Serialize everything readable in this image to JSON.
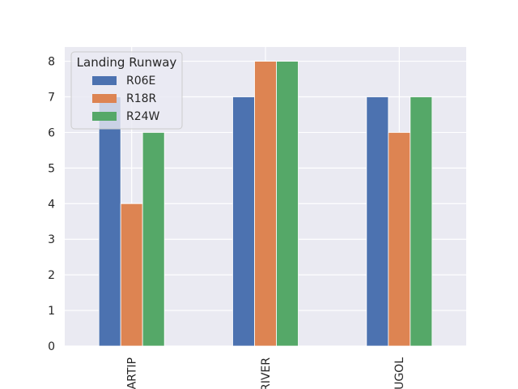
{
  "chart_data": {
    "type": "bar",
    "title": "",
    "xlabel": "",
    "ylabel": "",
    "categories": [
      "ARTIP",
      "RIVER",
      "UGOL"
    ],
    "series": [
      {
        "name": "R06E",
        "values": [
          7,
          7,
          7
        ],
        "color": "#4c72b0"
      },
      {
        "name": "R18R",
        "values": [
          4,
          8,
          6
        ],
        "color": "#dd8452"
      },
      {
        "name": "R24W",
        "values": [
          6,
          8,
          7
        ],
        "color": "#55a868"
      }
    ],
    "ylim": [
      0,
      8.4
    ],
    "yticks": [
      0,
      1,
      2,
      3,
      4,
      5,
      6,
      7,
      8
    ],
    "grid": true,
    "legend": {
      "title": "Landing Runway",
      "position": "top-left"
    },
    "background_color": "#eaeaf2",
    "grid_color": "#ffffff"
  }
}
